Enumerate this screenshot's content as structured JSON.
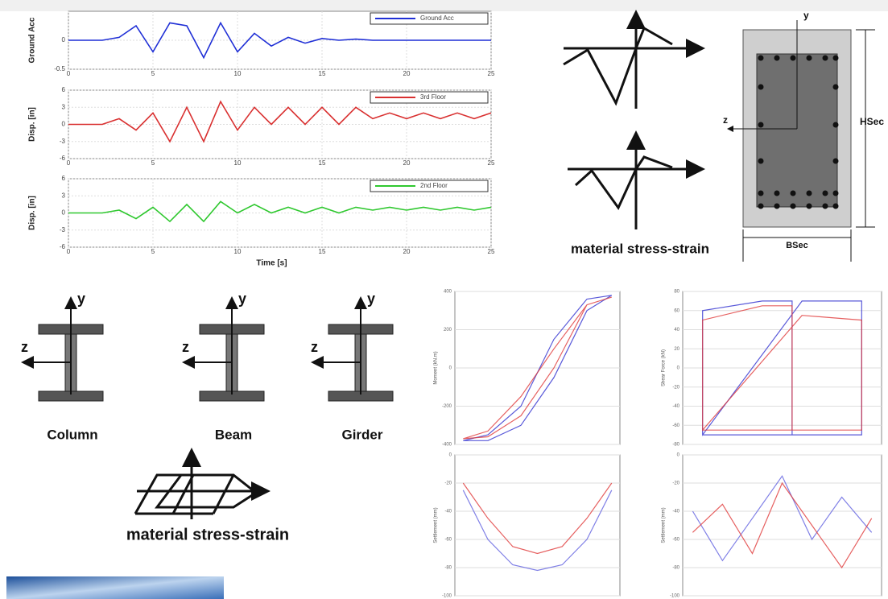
{
  "chart_data": [
    {
      "type": "line",
      "ylabel": "Ground Acc",
      "x": [
        0,
        1,
        2,
        3,
        4,
        5,
        6,
        7,
        8,
        9,
        10,
        11,
        12,
        13,
        14,
        15,
        16,
        17,
        18,
        19,
        20,
        21,
        22,
        23,
        24,
        25
      ],
      "series": [
        {
          "name": "Ground Acc",
          "color": "#1f2fd6",
          "values": [
            0,
            0,
            0,
            0.05,
            0.25,
            -0.2,
            0.3,
            0.25,
            -0.3,
            0.3,
            -0.2,
            0.12,
            -0.1,
            0.05,
            -0.05,
            0.03,
            0,
            0.02,
            0,
            0,
            0,
            0,
            0,
            0,
            0,
            0
          ]
        }
      ],
      "xlim": [
        0,
        25
      ],
      "ylim": [
        -0.5,
        0.5
      ],
      "xticks": [
        0,
        5,
        10,
        15,
        20,
        25
      ],
      "yticks": [
        -0.5,
        0
      ],
      "grid": true
    },
    {
      "type": "line",
      "ylabel": "Disp. [in]",
      "x": [
        0,
        1,
        2,
        3,
        4,
        5,
        6,
        7,
        8,
        9,
        10,
        11,
        12,
        13,
        14,
        15,
        16,
        17,
        18,
        19,
        20,
        21,
        22,
        23,
        24,
        25
      ],
      "series": [
        {
          "name": "3rd Floor",
          "color": "#d93030",
          "values": [
            0,
            0,
            0,
            1,
            -1,
            2,
            -3,
            3,
            -3,
            4,
            -1,
            3,
            0,
            3,
            0,
            3,
            0,
            3,
            1,
            2,
            1,
            2,
            1,
            2,
            1,
            2
          ]
        }
      ],
      "xlim": [
        0,
        25
      ],
      "ylim": [
        -6,
        6
      ],
      "xticks": [
        0,
        5,
        10,
        15,
        20,
        25
      ],
      "yticks": [
        -6,
        -3,
        0,
        3,
        6
      ],
      "grid": true
    },
    {
      "type": "line",
      "ylabel": "Disp. [in]",
      "xlabel": "Time [s]",
      "x": [
        0,
        1,
        2,
        3,
        4,
        5,
        6,
        7,
        8,
        9,
        10,
        11,
        12,
        13,
        14,
        15,
        16,
        17,
        18,
        19,
        20,
        21,
        22,
        23,
        24,
        25
      ],
      "series": [
        {
          "name": "2nd Floor",
          "color": "#2fc82f",
          "values": [
            0,
            0,
            0,
            0.5,
            -1,
            1,
            -1.5,
            1.5,
            -1.5,
            2,
            0,
            1.5,
            0,
            1,
            0,
            1,
            0,
            1,
            0.5,
            1,
            0.5,
            1,
            0.5,
            1,
            0.5,
            1
          ]
        }
      ],
      "xlim": [
        0,
        25
      ],
      "ylim": [
        -6,
        6
      ],
      "xticks": [
        0,
        5,
        10,
        15,
        20,
        25
      ],
      "yticks": [
        -6,
        -3,
        0,
        3,
        6
      ],
      "grid": true
    },
    {
      "type": "line",
      "ylabel": "Moment (kN.m)",
      "x": [
        -0.9,
        -0.6,
        -0.2,
        0.2,
        0.6,
        0.9,
        0.6,
        0.2,
        -0.2,
        -0.6,
        -0.9
      ],
      "series": [
        {
          "color": "#3030d0",
          "values": [
            -380,
            -350,
            -200,
            150,
            360,
            380,
            300,
            -50,
            -300,
            -380,
            -380
          ]
        },
        {
          "color": "#e03838",
          "values": [
            -370,
            -330,
            -150,
            100,
            330,
            370,
            330,
            0,
            -250,
            -360,
            -370
          ]
        }
      ],
      "xlim": [
        -1,
        1
      ],
      "ylim": [
        -400,
        400
      ],
      "yticks": [
        -400,
        -200,
        0,
        200,
        400
      ],
      "grid": true
    },
    {
      "type": "line",
      "ylabel": "Shear Force (kN)",
      "x": [
        -0.8,
        -0.2,
        0.1,
        0.1,
        -0.2,
        -0.8,
        -0.8,
        0.2,
        0.8,
        0.8,
        0.2,
        -0.8
      ],
      "series": [
        {
          "color": "#3030d0",
          "values": [
            -70,
            -70,
            -70,
            70,
            70,
            60,
            -70,
            70,
            70,
            -70,
            -70,
            -70
          ]
        },
        {
          "color": "#e03838",
          "values": [
            -65,
            -65,
            -65,
            65,
            65,
            50,
            -65,
            55,
            50,
            -65,
            -65,
            -65
          ]
        }
      ],
      "xlim": [
        -1,
        1
      ],
      "ylim": [
        -80,
        80
      ],
      "yticks": [
        -80,
        -60,
        -40,
        -20,
        0,
        20,
        40,
        60,
        80
      ],
      "grid": true
    },
    {
      "type": "line",
      "ylabel": "Settlement (mm)",
      "x": [
        -0.9,
        -0.6,
        -0.3,
        0,
        0.3,
        0.6,
        0.9
      ],
      "series": [
        {
          "color": "#6060e0",
          "values": [
            -25,
            -60,
            -78,
            -82,
            -78,
            -60,
            -25
          ]
        },
        {
          "color": "#e03838",
          "values": [
            -20,
            -45,
            -65,
            -70,
            -65,
            -45,
            -20
          ]
        }
      ],
      "xlim": [
        -1,
        1
      ],
      "ylim": [
        -100,
        0
      ],
      "yticks": [
        -100,
        -80,
        -60,
        -40,
        -20,
        0
      ],
      "grid": true
    },
    {
      "type": "line",
      "ylabel": "Settlement (mm)",
      "x": [
        -0.9,
        -0.6,
        -0.3,
        0,
        0.3,
        0.6,
        0.9
      ],
      "series": [
        {
          "color": "#6060e0",
          "values": [
            -40,
            -75,
            -45,
            -15,
            -60,
            -30,
            -55
          ]
        },
        {
          "color": "#e03838",
          "values": [
            -55,
            -35,
            -70,
            -20,
            -50,
            -80,
            -45
          ]
        }
      ],
      "xlim": [
        -1,
        1
      ],
      "ylim": [
        -100,
        0
      ],
      "yticks": [
        -100,
        -80,
        -60,
        -40,
        -20,
        0
      ],
      "grid": true
    }
  ],
  "diagram": {
    "top_stress_strain_label": "material stress-strain",
    "section": {
      "y": "y",
      "z": "z",
      "height": "HSec",
      "width": "BSec"
    },
    "members": [
      {
        "label": "Column",
        "y": "y",
        "z": "z"
      },
      {
        "label": "Beam",
        "y": "y",
        "z": "z"
      },
      {
        "label": "Girder",
        "y": "y",
        "z": "z"
      }
    ],
    "bottom_stress_strain_label": "material stress-strain"
  }
}
